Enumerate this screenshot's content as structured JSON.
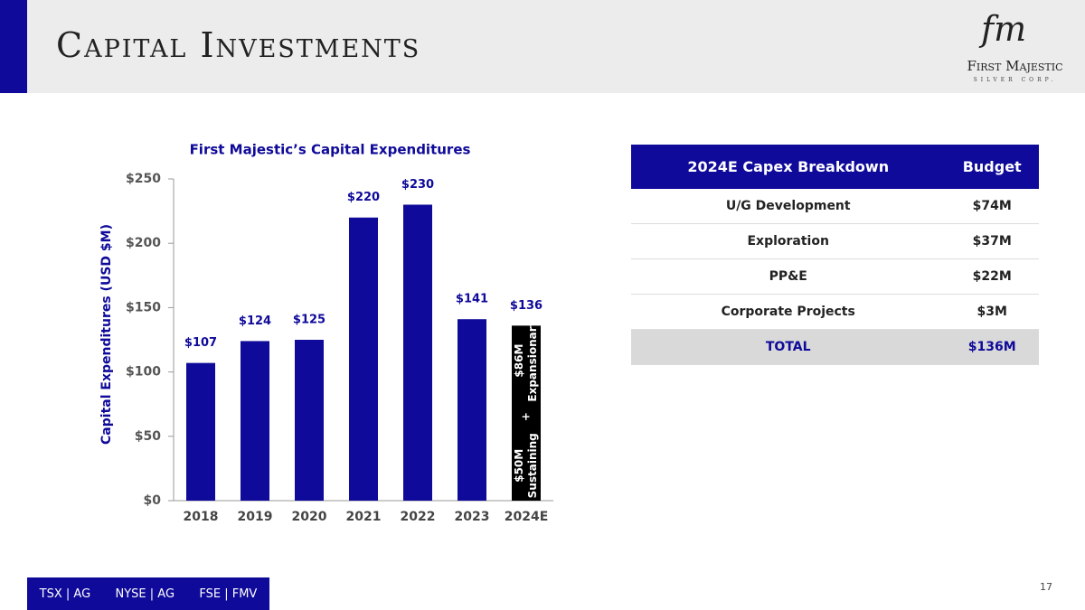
{
  "header": {
    "title": "Capital Investments",
    "logo_mark": "fm",
    "logo_name": "First Majestic",
    "logo_sub": "SILVER CORP."
  },
  "chart_data": {
    "type": "bar",
    "title": "First Majestic’s Capital Expenditures",
    "y_label": "Capital Expenditures (USD $M)",
    "categories": [
      "2018",
      "2019",
      "2020",
      "2021",
      "2022",
      "2023",
      "2024E"
    ],
    "values": [
      107,
      124,
      125,
      220,
      230,
      141,
      136
    ],
    "value_labels": [
      "$107",
      "$124",
      "$125",
      "$220",
      "$230",
      "$141",
      "$136"
    ],
    "colors": [
      "#0f0a99",
      "#0f0a99",
      "#0f0a99",
      "#0f0a99",
      "#0f0a99",
      "#0f0a99",
      "#000000"
    ],
    "ylim": [
      0,
      250
    ],
    "yticks": [
      {
        "value": 0,
        "label": "$0"
      },
      {
        "value": 50,
        "label": "$50"
      },
      {
        "value": 100,
        "label": "$100"
      },
      {
        "value": 150,
        "label": "$150"
      },
      {
        "value": 200,
        "label": "$200"
      },
      {
        "value": 250,
        "label": "$250"
      }
    ],
    "annotations": [
      [
        "$50M",
        "Sustaining"
      ],
      [
        "+"
      ],
      [
        "$86M",
        "Expansionary"
      ]
    ]
  },
  "table": {
    "header": [
      "2024E Capex Breakdown",
      "Budget"
    ],
    "rows": [
      [
        "U/G Development",
        "$74M"
      ],
      [
        "Exploration",
        "$37M"
      ],
      [
        "PP&E",
        "$22M"
      ],
      [
        "Corporate Projects",
        "$3M"
      ],
      [
        "TOTAL",
        "$136M"
      ]
    ]
  },
  "footer": {
    "tickers": [
      "TSX | AG",
      "NYSE | AG",
      "FSE | FMV"
    ],
    "page": "17"
  }
}
